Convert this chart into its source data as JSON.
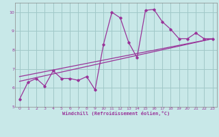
{
  "xlabel": "Windchill (Refroidissement éolien,°C)",
  "bg_color": "#c8e8e8",
  "grid_color": "#a0c8c8",
  "line_color": "#993399",
  "xlim": [
    -0.5,
    23.5
  ],
  "ylim": [
    5,
    10.5
  ],
  "xticks": [
    0,
    1,
    2,
    3,
    4,
    5,
    6,
    7,
    8,
    9,
    10,
    11,
    12,
    13,
    14,
    15,
    16,
    17,
    18,
    19,
    20,
    21,
    22,
    23
  ],
  "yticks": [
    5,
    6,
    7,
    8,
    9,
    10
  ],
  "series1_x": [
    0,
    1,
    2,
    3,
    4,
    5,
    6,
    7,
    8,
    9,
    10,
    11,
    12,
    13,
    14,
    15,
    16,
    17,
    18,
    19,
    20,
    21,
    22,
    23
  ],
  "series1_y": [
    5.4,
    6.3,
    6.5,
    6.1,
    6.9,
    6.5,
    6.5,
    6.4,
    6.6,
    5.9,
    8.3,
    10.0,
    9.7,
    8.4,
    7.6,
    10.1,
    10.15,
    9.5,
    9.1,
    8.6,
    8.6,
    8.9,
    8.6,
    8.6
  ],
  "series2_x": [
    0,
    23
  ],
  "series2_y": [
    6.35,
    8.6
  ],
  "series3_x": [
    0,
    23
  ],
  "series3_y": [
    6.6,
    8.6
  ],
  "series4_x": [
    0,
    23
  ],
  "series4_y": [
    6.8,
    8.6
  ]
}
